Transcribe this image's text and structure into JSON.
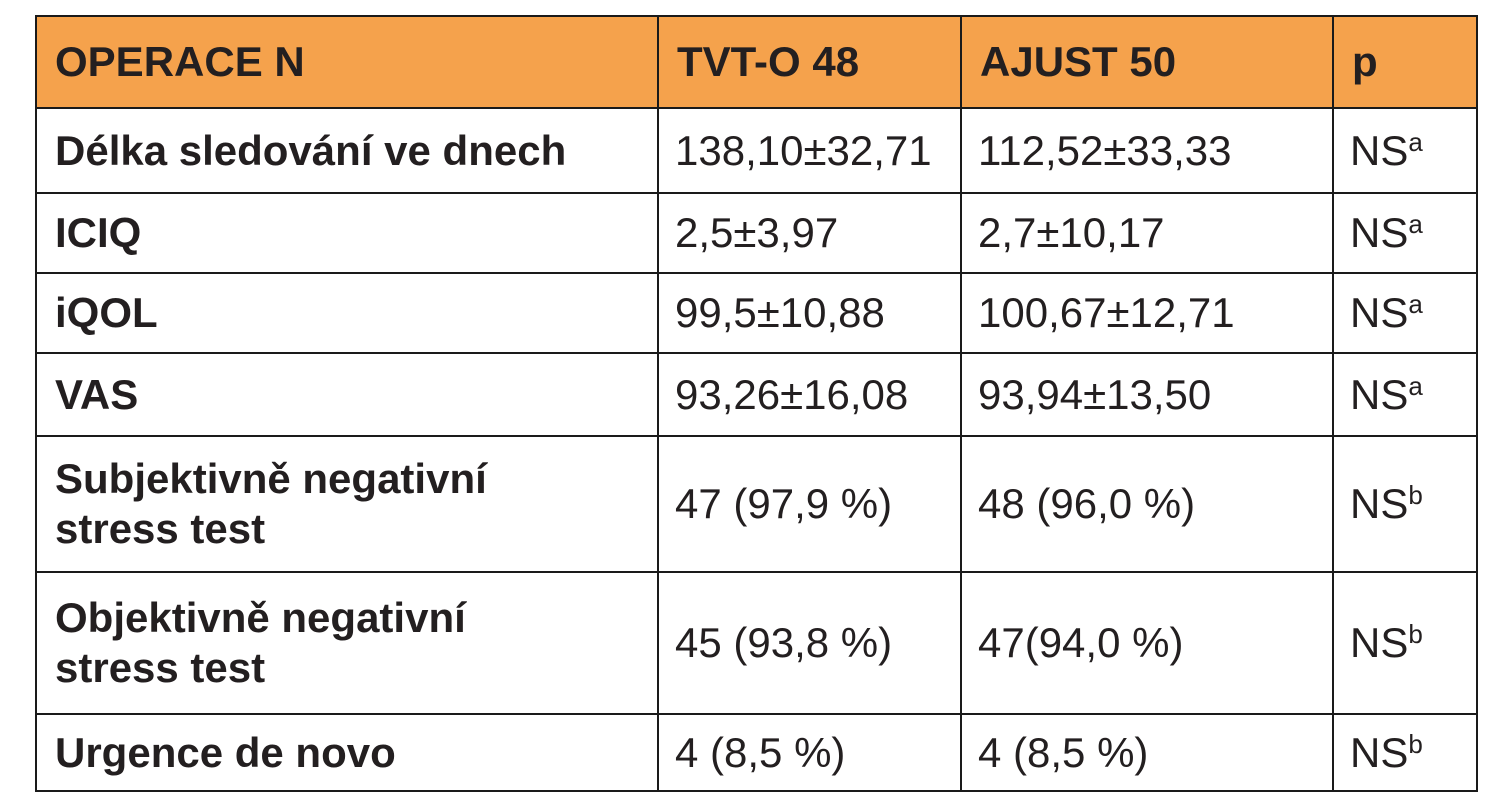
{
  "table": {
    "headers": [
      "OPERACE N",
      "TVT-O 48",
      "AJUST 50",
      "p"
    ],
    "rows": [
      {
        "label": "Délka sledování ve dnech",
        "tvto": "138,10±32,71",
        "ajust": "112,52±33,33",
        "p": "NS",
        "sup": "a"
      },
      {
        "label": "ICIQ",
        "tvto": "2,5±3,97",
        "ajust": "2,7±10,17",
        "p": "NS",
        "sup": "a"
      },
      {
        "label": "iQOL",
        "tvto": "99,5±10,88",
        "ajust": "100,67±12,71",
        "p": "NS",
        "sup": "a"
      },
      {
        "label": "VAS",
        "tvto": "93,26±16,08",
        "ajust": "93,94±13,50",
        "p": "NS",
        "sup": "a"
      },
      {
        "label_line1": "Subjektivně negativní",
        "label_line2": "stress test",
        "tvto": "47 (97,9 %)",
        "ajust": "48 (96,0 %)",
        "p": "NS",
        "sup": "b"
      },
      {
        "label_line1": "Objektivně negativní",
        "label_line2": "stress test",
        "tvto": "45 (93,8 %)",
        "ajust": "47(94,0 %)",
        "p": "NS",
        "sup": "b"
      },
      {
        "label": "Urgence de novo",
        "tvto": "4 (8,5 %)",
        "ajust": "4 (8,5 %)",
        "p": "NS",
        "sup": "b"
      }
    ]
  },
  "colors": {
    "header_bg": "#f5a24c",
    "border": "#1a1a1a",
    "text": "#231f20"
  }
}
